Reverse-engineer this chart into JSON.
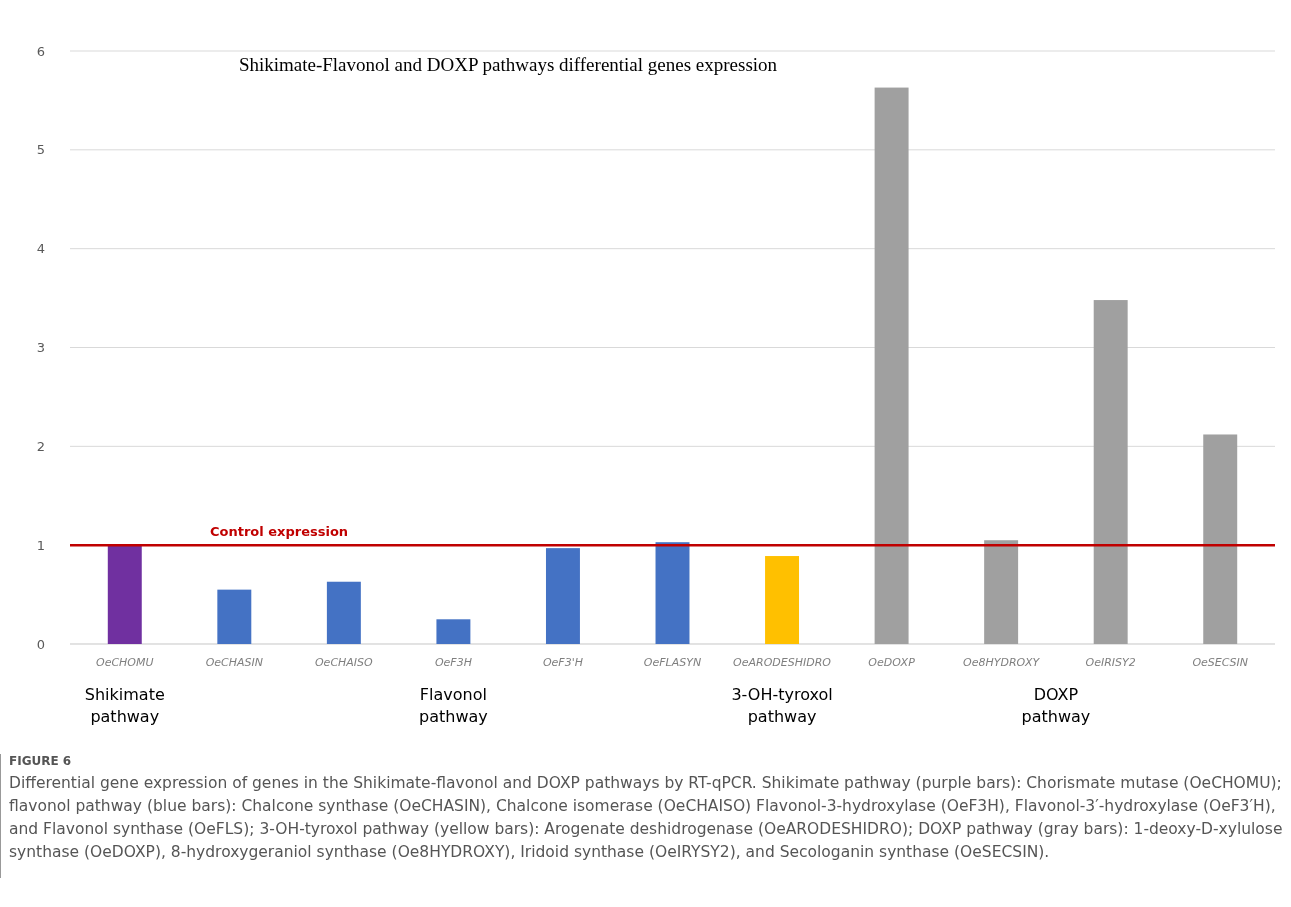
{
  "chart_data": {
    "type": "bar",
    "title": "Shikimate-Flavonol and DOXP pathways differential genes expression",
    "categories": [
      "OeCHOMU",
      "OeCHASIN",
      "OeCHAISO",
      "OeF3H",
      "OeF3'H",
      "OeFLASYN",
      "OeARODESHIDRO",
      "OeDOXP",
      "Oe8HYDROXY",
      "OeIRISY2",
      "OeSECSIN"
    ],
    "values": [
      1.0,
      0.55,
      0.63,
      0.25,
      0.97,
      1.03,
      0.89,
      5.63,
      1.05,
      3.48,
      2.12
    ],
    "colors": [
      "#7030a0",
      "#4472c4",
      "#4472c4",
      "#4472c4",
      "#4472c4",
      "#4472c4",
      "#ffc000",
      "#a0a0a0",
      "#a0a0a0",
      "#a0a0a0",
      "#a0a0a0"
    ],
    "ylim": [
      0,
      6
    ],
    "yticks": [
      0,
      1,
      2,
      3,
      4,
      5,
      6
    ],
    "grid": "y",
    "ref_lines": [
      {
        "axis": "y",
        "value": 1,
        "label": "Control expression",
        "color": "#c00000"
      }
    ],
    "annotations": [
      "Shikimate pathway",
      "Flavonol pathway",
      "3-OH-tyroxol pathway",
      "DOXP pathway",
      "FIGURE 6",
      "Differential gene expression of genes in the Shikimate-flavonol and DOXP pathways by RT-qPCR. Shikimate pathway (purple bars): Chorismate mutase (OeCHOMU); flavonol pathway (blue bars): Chalcone synthase (OeCHASIN), Chalcone isomerase (OeCHAISO) Flavonol-3-hydroxylase (OeF3H), Flavonol-3′-hydroxylase (OeF3′H), and Flavonol synthase (OeFLS); 3-OH-tyroxol pathway (yellow bars): Arogenate deshidrogenase (OeARODESHIDRO); DOXP pathway (gray bars): 1-deoxy-D-xylulose synthase (OeDOXP), 8-hydroxygeraniol synthase (Oe8HYDROXY), Iridoid synthase (OeIRYSY2), and Secologanin synthase (OeSECSIN)."
    ]
  }
}
